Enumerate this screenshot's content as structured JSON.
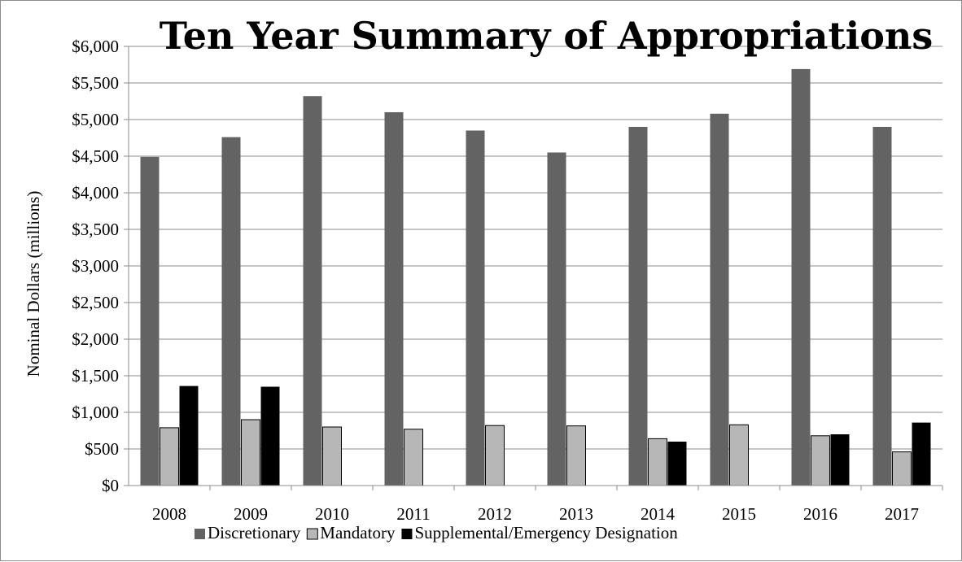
{
  "chart_data": {
    "type": "bar",
    "title": "Ten Year Summary of Appropriations",
    "ylabel": "Nominal Dollars (millions)",
    "xlabel": "",
    "categories": [
      "2008",
      "2009",
      "2010",
      "2011",
      "2012",
      "2013",
      "2014",
      "2015",
      "2016",
      "2017"
    ],
    "ylim": [
      0,
      6000
    ],
    "y_ticks": [
      0,
      500,
      1000,
      1500,
      2000,
      2500,
      3000,
      3500,
      4000,
      4500,
      5000,
      5500,
      6000
    ],
    "y_tick_labels": [
      "$0",
      "$500",
      "$1,000",
      "$1,500",
      "$2,000",
      "$2,500",
      "$3,000",
      "$3,500",
      "$4,000",
      "$4,500",
      "$5,000",
      "$5,500",
      "$6,000"
    ],
    "grid": true,
    "legend_position": "bottom",
    "series": [
      {
        "name": "Discretionary",
        "color": "#636363",
        "values": [
          4490,
          4760,
          5320,
          5100,
          4850,
          4550,
          4900,
          5080,
          5690,
          4900
        ]
      },
      {
        "name": "Mandatory",
        "color": "#b7b7b7",
        "values": [
          790,
          900,
          800,
          770,
          820,
          815,
          640,
          830,
          680,
          460
        ]
      },
      {
        "name": "Supplemental/Emergency Designation",
        "color": "#000000",
        "values": [
          1360,
          1350,
          0,
          0,
          0,
          0,
          600,
          0,
          700,
          860
        ]
      }
    ]
  }
}
